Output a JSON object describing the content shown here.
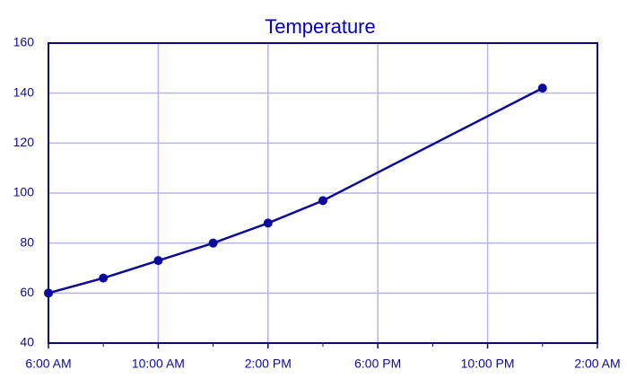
{
  "chart_data": {
    "type": "line",
    "title": "Temperature",
    "x": [
      6,
      8,
      10,
      12,
      14,
      16,
      24
    ],
    "series": [
      {
        "name": "Temperature",
        "color": "#0a0a9e",
        "values": [
          60,
          66,
          73,
          80,
          88,
          97,
          142
        ]
      }
    ],
    "xlim": [
      6,
      26
    ],
    "xticks": [
      {
        "value": 6,
        "label": "6:00 AM"
      },
      {
        "value": 10,
        "label": "10:00 AM"
      },
      {
        "value": 14,
        "label": "2:00 PM"
      },
      {
        "value": 18,
        "label": "6:00 PM"
      },
      {
        "value": 22,
        "label": "10:00 PM"
      },
      {
        "value": 26,
        "label": "2:00 AM"
      }
    ],
    "ylim": [
      40,
      160
    ],
    "yticks": [
      40,
      60,
      80,
      100,
      120,
      140,
      160
    ],
    "grid": true
  }
}
